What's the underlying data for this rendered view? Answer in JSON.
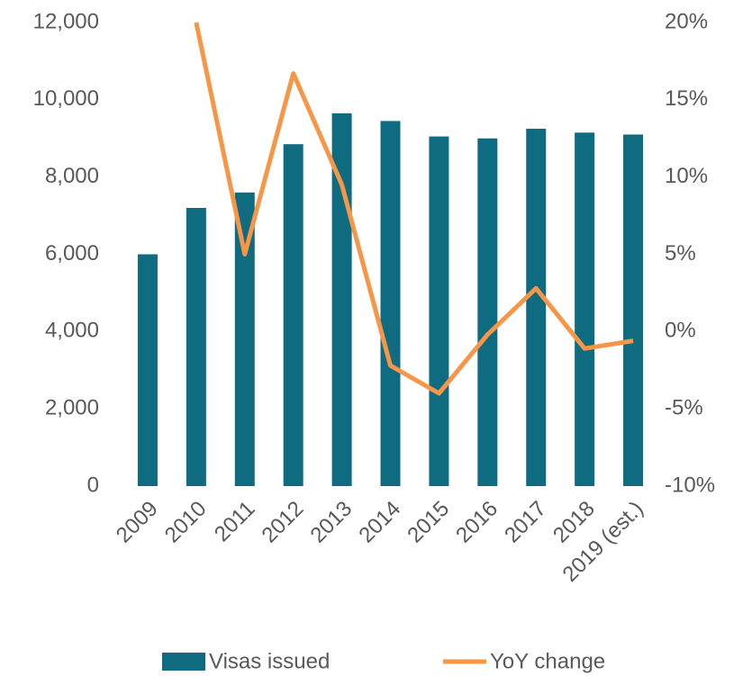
{
  "chart_data": {
    "type": "bar",
    "categories": [
      "2009",
      "2010",
      "2011",
      "2012",
      "2013",
      "2014",
      "2015",
      "2016",
      "2017",
      "2018",
      "2019 (est.)"
    ],
    "series": [
      {
        "name": "Visas issued",
        "type": "bar",
        "color": "#0f6b80",
        "values": [
          6000,
          7200,
          7600,
          8850,
          9650,
          9450,
          9050,
          9000,
          9250,
          9150,
          9100
        ]
      },
      {
        "name": "YoY change",
        "type": "line",
        "axis": "y2",
        "color": "#f79646",
        "values": [
          null,
          20,
          5,
          16.7,
          9.5,
          -2.2,
          -4.0,
          -0.2,
          2.8,
          -1.1,
          -0.6
        ]
      }
    ],
    "ylim": [
      0,
      12000
    ],
    "yticks": [
      0,
      {
        "value": 2000,
        "label": "2,000"
      },
      {
        "value": 4000,
        "label": "4,000"
      },
      {
        "value": 6000,
        "label": "6,000"
      },
      {
        "value": 8000,
        "label": "8,000"
      },
      {
        "value": 10000,
        "label": "10,000"
      },
      {
        "value": 12000,
        "label": "12,000"
      }
    ],
    "y2lim": [
      -10,
      20
    ],
    "y2ticks": [
      {
        "value": -10,
        "label": "-10%"
      },
      {
        "value": -5,
        "label": "-5%"
      },
      {
        "value": 0,
        "label": "0%"
      },
      {
        "value": 5,
        "label": "5%"
      },
      {
        "value": 10,
        "label": "10%"
      },
      {
        "value": 15,
        "label": "15%"
      },
      {
        "value": 20,
        "label": "20%"
      }
    ],
    "legend": "bottom"
  }
}
